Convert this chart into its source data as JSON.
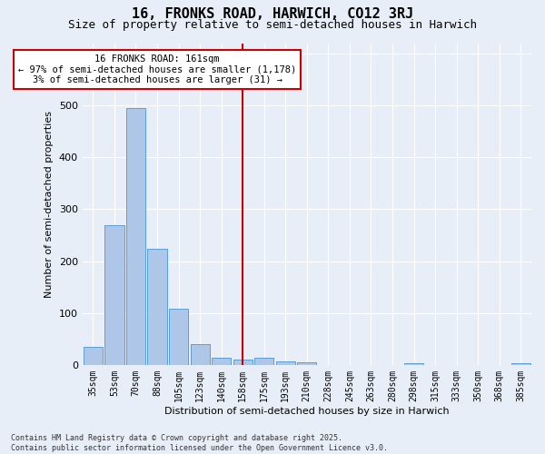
{
  "title1": "16, FRONKS ROAD, HARWICH, CO12 3RJ",
  "title2": "Size of property relative to semi-detached houses in Harwich",
  "xlabel": "Distribution of semi-detached houses by size in Harwich",
  "ylabel": "Number of semi-detached properties",
  "categories": [
    "35sqm",
    "53sqm",
    "70sqm",
    "88sqm",
    "105sqm",
    "123sqm",
    "140sqm",
    "158sqm",
    "175sqm",
    "193sqm",
    "210sqm",
    "228sqm",
    "245sqm",
    "263sqm",
    "280sqm",
    "298sqm",
    "315sqm",
    "333sqm",
    "350sqm",
    "368sqm",
    "385sqm"
  ],
  "values": [
    35,
    270,
    495,
    223,
    108,
    40,
    13,
    10,
    13,
    7,
    5,
    0,
    0,
    0,
    0,
    4,
    0,
    0,
    0,
    0,
    4
  ],
  "bar_color": "#aec6e8",
  "bar_edge_color": "#5a9fd4",
  "vline_index": 7,
  "vline_color": "#cc0000",
  "annotation_text": "16 FRONKS ROAD: 161sqm\n← 97% of semi-detached houses are smaller (1,178)\n3% of semi-detached houses are larger (31) →",
  "annotation_box_color": "#ffffff",
  "annotation_box_edge": "#cc0000",
  "annotation_fontsize": 7.5,
  "bg_color": "#e8eef8",
  "grid_color": "#ffffff",
  "footer_text": "Contains HM Land Registry data © Crown copyright and database right 2025.\nContains public sector information licensed under the Open Government Licence v3.0.",
  "ylim": [
    0,
    620
  ],
  "title1_fontsize": 11,
  "title2_fontsize": 9,
  "xlabel_fontsize": 8,
  "ylabel_fontsize": 8,
  "tick_fontsize": 7,
  "footer_fontsize": 6
}
